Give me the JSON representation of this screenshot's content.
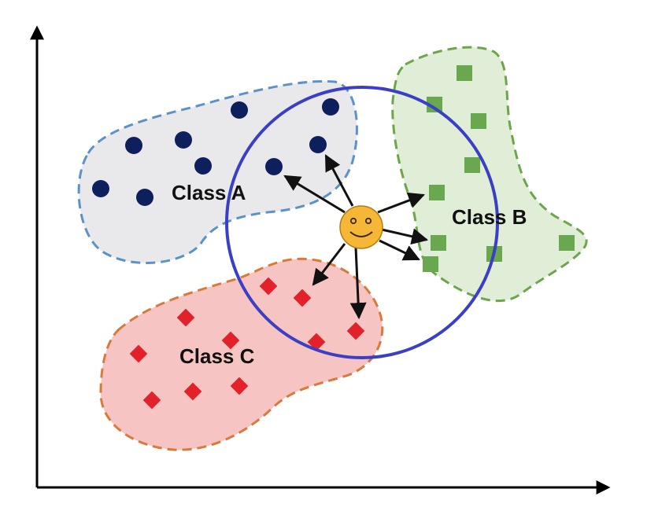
{
  "classes": [
    {
      "id": "a",
      "label": "Class A",
      "fill": "#e9e9ec",
      "border": "#5b92c8",
      "point_color": "#0d1f5c",
      "point_shape": "circle"
    },
    {
      "id": "b",
      "label": "Class B",
      "fill": "#e0eed8",
      "border": "#6da64a",
      "point_color": "#6aa84f",
      "point_shape": "square"
    },
    {
      "id": "c",
      "label": "Class C",
      "fill": "#f6c4c2",
      "border": "#d97a3c",
      "point_color": "#e3212a",
      "point_shape": "diamond"
    }
  ],
  "query": {
    "icon": "smiley-face-icon",
    "fill": "#f6b737",
    "neighbor_circle_color": "#3b3fc4",
    "arrow_color": "#111111"
  },
  "axes": {
    "color": "#000000",
    "arrowheads": true
  }
}
